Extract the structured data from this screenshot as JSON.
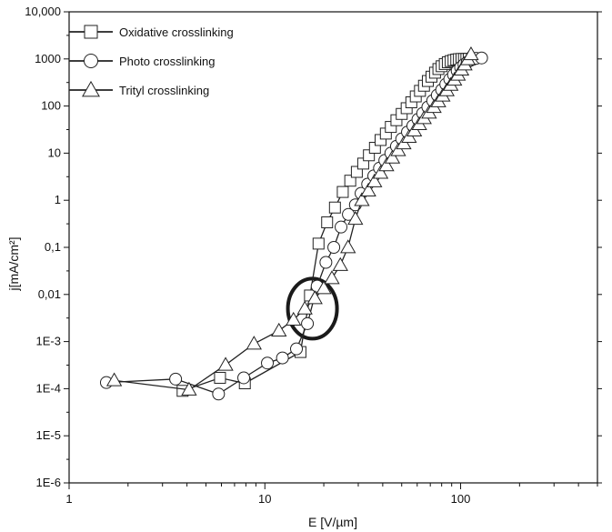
{
  "chart_data": {
    "type": "scatter",
    "title": "",
    "xlabel": "E [V/µm]",
    "ylabel": "j[mA/cm²]",
    "xscale": "log",
    "yscale": "log",
    "xlim": [
      1,
      500
    ],
    "ylim": [
      1e-06,
      10000
    ],
    "x_ticks": [
      {
        "value": 1,
        "label": "1"
      },
      {
        "value": 10,
        "label": "10"
      },
      {
        "value": 100,
        "label": "100"
      }
    ],
    "y_ticks": [
      {
        "value": 10000,
        "label": "10,000"
      },
      {
        "value": 1000,
        "label": "1000"
      },
      {
        "value": 100,
        "label": "100"
      },
      {
        "value": 10,
        "label": "10"
      },
      {
        "value": 1,
        "label": "1"
      },
      {
        "value": 0.1,
        "label": "0,1"
      },
      {
        "value": 0.01,
        "label": "0,01"
      },
      {
        "value": 0.001,
        "label": "1E-3"
      },
      {
        "value": 0.0001,
        "label": "1E-4"
      },
      {
        "value": 1e-05,
        "label": "1E-5"
      },
      {
        "value": 1e-06,
        "label": "1E-6"
      }
    ],
    "grid": false,
    "legend_position": "top-left",
    "highlight_ellipse": {
      "center_x": 17.5,
      "center_y": 0.005,
      "color": "#1a1a1a"
    },
    "series": [
      {
        "name": "Oxidative crosslinking",
        "marker": "square",
        "color": "#222222",
        "x": [
          3.8,
          5.9,
          7.9,
          15.2,
          17.0,
          18.8,
          20.8,
          22.8,
          25.0,
          27.3,
          29.5,
          31.8,
          34.0,
          36.5,
          39.0,
          41.5,
          44.0,
          47.0,
          50.0,
          53.0,
          56.0,
          59.0,
          62.0,
          65.0,
          68.0,
          71.0,
          74.0,
          77.0,
          80.0,
          83.0,
          86.0,
          89.0,
          92.0,
          95.0,
          98.0,
          101.0,
          104.0,
          107.0,
          110.0
        ],
        "y": [
          9e-05,
          0.00017,
          0.00013,
          0.0006,
          0.0095,
          0.12,
          0.34,
          0.7,
          1.5,
          2.6,
          4.0,
          6.0,
          9.0,
          13.0,
          19.0,
          26.0,
          36.0,
          50.0,
          68.0,
          90.0,
          120.0,
          160.0,
          210.0,
          270.0,
          340.0,
          420.0,
          510.0,
          610.0,
          700.0,
          780.0,
          850.0,
          900.0,
          940.0,
          970.0,
          990.0,
          1000.0,
          1000.0,
          1000.0,
          1000.0
        ]
      },
      {
        "name": "Photo crosslinking",
        "marker": "circle",
        "color": "#222222",
        "x": [
          1.55,
          3.5,
          5.8,
          7.8,
          10.3,
          12.3,
          14.5,
          16.5,
          18.5,
          20.5,
          22.5,
          24.5,
          26.7,
          29.0,
          31.0,
          33.5,
          36.0,
          38.5,
          41.0,
          44.0,
          47.0,
          50.0,
          53.5,
          57.0,
          60.5,
          64.0,
          68.0,
          72.0,
          76.0,
          80.0,
          84.0,
          88.0,
          92.0,
          96.0,
          100.0,
          104.0,
          108.0,
          112.0,
          116.0,
          120.0,
          128.0
        ],
        "y": [
          0.000135,
          0.00016,
          7.7e-05,
          0.00017,
          0.00035,
          0.00045,
          0.0007,
          0.0024,
          0.015,
          0.048,
          0.1,
          0.27,
          0.5,
          0.8,
          1.4,
          2.2,
          3.3,
          4.8,
          7.0,
          10.0,
          14.0,
          20.0,
          28.0,
          38.0,
          52.0,
          70.0,
          95.0,
          130.0,
          170.0,
          220.0,
          290.0,
          370.0,
          460.0,
          560.0,
          660.0,
          760.0,
          850.0,
          930.0,
          990.0,
          1030.0,
          1050.0
        ]
      },
      {
        "name": "Trityl crosslinking",
        "marker": "triangle",
        "color": "#222222",
        "x": [
          1.7,
          4.1,
          6.3,
          8.8,
          11.8,
          14.0,
          16.0,
          18.0,
          20.0,
          22.0,
          24.3,
          26.6,
          29.0,
          31.3,
          33.8,
          36.3,
          39.0,
          41.8,
          44.8,
          48.0,
          51.2,
          54.5,
          58.0,
          61.5,
          65.0,
          69.0,
          73.0,
          77.0,
          81.0,
          85.0,
          89.0,
          93.0,
          97.0,
          101.0,
          105.0,
          109.0,
          113.0
        ],
        "y": [
          0.00015,
          9.5e-05,
          0.00032,
          0.0009,
          0.0017,
          0.0029,
          0.005,
          0.0083,
          0.0135,
          0.022,
          0.042,
          0.1,
          0.4,
          1.0,
          1.6,
          2.5,
          3.8,
          5.5,
          8.0,
          11.5,
          16.0,
          22.0,
          30.0,
          41.0,
          55.0,
          72.0,
          95.0,
          125.0,
          165.0,
          215.0,
          280.0,
          360.0,
          460.0,
          590.0,
          760.0,
          980.0,
          1250.0
        ]
      }
    ]
  }
}
